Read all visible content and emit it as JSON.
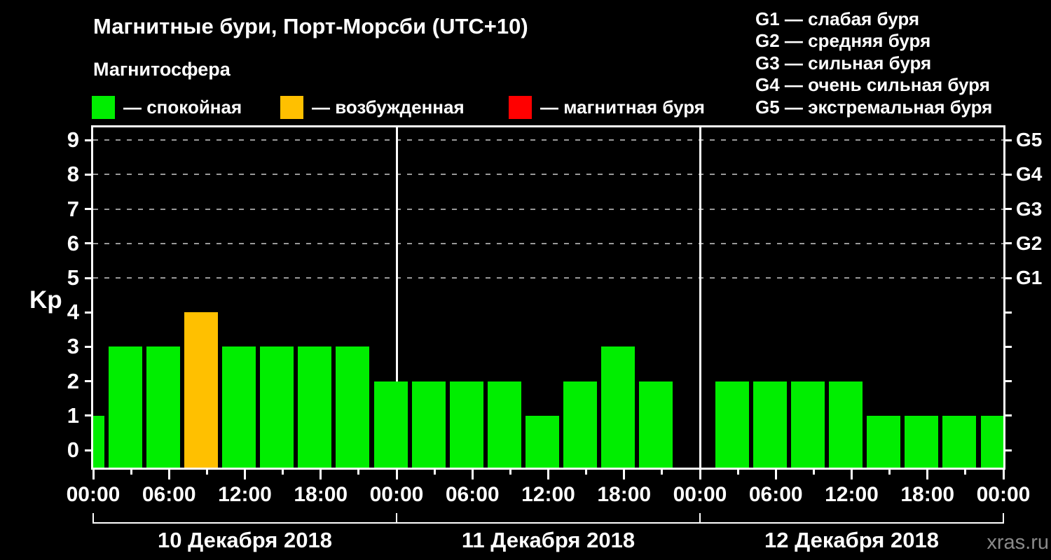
{
  "title": "Магнитные бури, Порт-Морсби (UTC+10)",
  "subtitle": "Магнитосфера",
  "legend": {
    "items": [
      {
        "id": "quiet",
        "label": "— спокойная",
        "color": "#00ee00"
      },
      {
        "id": "excited",
        "label": "— возбужденная",
        "color": "#ffc000"
      },
      {
        "id": "storm",
        "label": "— магнитная буря",
        "color": "#ff0000"
      }
    ]
  },
  "storm_scale": {
    "items": [
      {
        "text": "G1 — слабая буря"
      },
      {
        "text": "G2 — средняя буря"
      },
      {
        "text": "G3 — сильная буря"
      },
      {
        "text": "G4 — очень сильная буря"
      },
      {
        "text": "G5 — экстремальная буря"
      }
    ]
  },
  "watermark": "xras.ru",
  "chart_data": {
    "type": "bar",
    "title": "Магнитные бури, Порт-Морсби (UTC+10)",
    "ylabel": "Kp",
    "ylim": [
      0,
      9
    ],
    "yticks": [
      0,
      1,
      2,
      3,
      4,
      5,
      6,
      7,
      8,
      9
    ],
    "bar_interval_hours": 3,
    "x_total_hours": 72,
    "xticklabels": [
      "00:00",
      "06:00",
      "12:00",
      "18:00",
      "00:00",
      "06:00",
      "12:00",
      "18:00",
      "00:00",
      "06:00",
      "12:00",
      "18:00",
      "00:00"
    ],
    "right_axis_labels": [
      {
        "label": "G5",
        "kp": 9
      },
      {
        "label": "G4",
        "kp": 8
      },
      {
        "label": "G3",
        "kp": 7
      },
      {
        "label": "G2",
        "kp": 6
      },
      {
        "label": "G1",
        "kp": 5
      }
    ],
    "dashed_gridlines_kp": [
      5,
      6,
      7,
      8,
      9
    ],
    "grid": "dashed-horizontal-at-storm-levels",
    "legend_position": "top",
    "status_colors": {
      "quiet": "#00ee00",
      "excited": "#ffc000",
      "storm": "#ff0000"
    },
    "days": [
      {
        "date": "10 Декабря 2018",
        "first_bar_center_hour": 0,
        "kp_values": [
          1,
          3,
          3,
          4,
          3,
          3,
          3,
          3
        ],
        "statuses": [
          "quiet",
          "quiet",
          "quiet",
          "excited",
          "quiet",
          "quiet",
          "quiet",
          "quiet"
        ]
      },
      {
        "date": "11 Декабря 2018",
        "first_bar_center_hour": 24,
        "kp_values": [
          2,
          2,
          2,
          2,
          1,
          2,
          3,
          2
        ],
        "statuses": [
          "quiet",
          "quiet",
          "quiet",
          "quiet",
          "quiet",
          "quiet",
          "quiet",
          "quiet"
        ]
      },
      {
        "date": "12 Декабря 2018",
        "first_bar_center_hour": 51,
        "kp_values": [
          2,
          2,
          2,
          2,
          1,
          1,
          1,
          1
        ],
        "statuses": [
          "quiet",
          "quiet",
          "quiet",
          "quiet",
          "quiet",
          "quiet",
          "quiet",
          "quiet"
        ]
      }
    ]
  }
}
